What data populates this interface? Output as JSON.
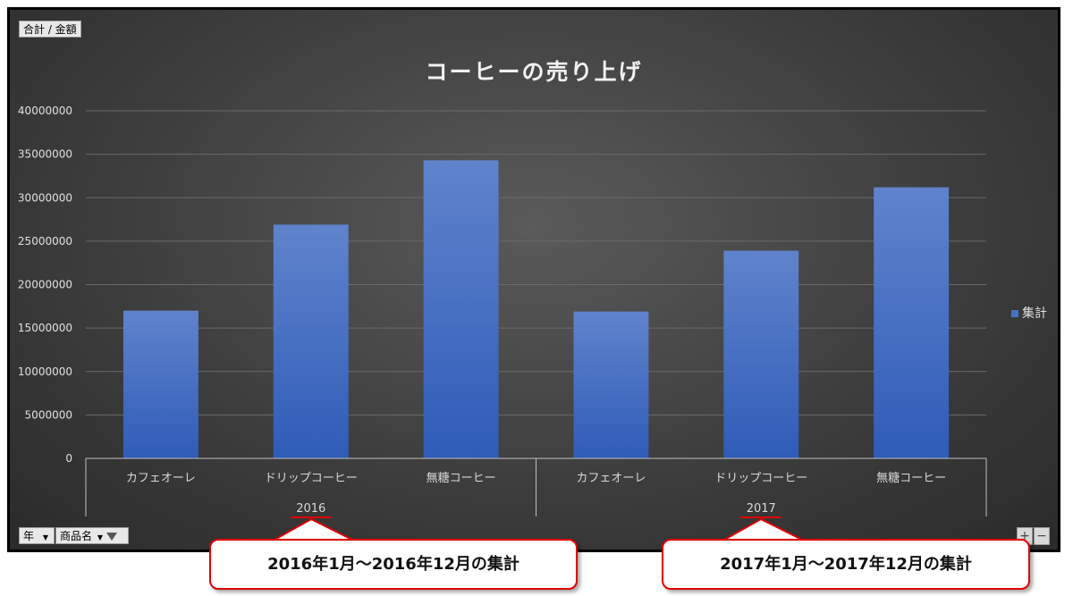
{
  "chart_data": {
    "type": "bar",
    "title": "コーヒーの売り上げ",
    "field_buttons": {
      "value_field": "合計 / 金額",
      "axis_field_year": "年",
      "axis_field_product": "商品名"
    },
    "groups": [
      {
        "label": "2016",
        "categories": [
          "カフェオーレ",
          "ドリップコーヒー",
          "無糖コーヒー"
        ]
      },
      {
        "label": "2017",
        "categories": [
          "カフェオーレ",
          "ドリップコーヒー",
          "無糖コーヒー"
        ]
      }
    ],
    "series": [
      {
        "name": "集計",
        "color": "#4472c4",
        "values": [
          17000000,
          26900000,
          34300000,
          16900000,
          23900000,
          31200000
        ]
      }
    ],
    "ylim": [
      0,
      40000000
    ],
    "yticks": [
      0,
      5000000,
      10000000,
      15000000,
      20000000,
      25000000,
      30000000,
      35000000,
      40000000
    ],
    "legend_position": "right",
    "grid": true
  },
  "callouts": [
    {
      "text": "2016年1月～2016年12月の集計"
    },
    {
      "text": "2017年1月～2017年12月の集計"
    }
  ],
  "colors": {
    "highlight": "#e00000",
    "bar": "#4472c4"
  }
}
